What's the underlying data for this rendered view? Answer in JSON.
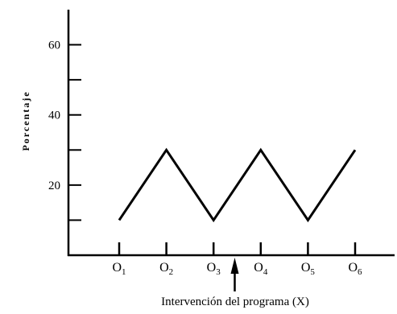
{
  "chart_data": {
    "type": "line",
    "title": "",
    "xlabel": "",
    "ylabel": "Porcentaje",
    "ylim": [
      0,
      70
    ],
    "yticks": [
      10,
      20,
      30,
      40,
      50,
      60
    ],
    "ytick_labels": [
      "",
      "20",
      "",
      "40",
      "",
      "60"
    ],
    "categories": [
      {
        "base": "O",
        "sub": "1"
      },
      {
        "base": "O",
        "sub": "2"
      },
      {
        "base": "O",
        "sub": "3"
      },
      {
        "base": "O",
        "sub": "4"
      },
      {
        "base": "O",
        "sub": "5"
      },
      {
        "base": "O",
        "sub": "6"
      }
    ],
    "series": [
      {
        "values": [
          10,
          30,
          10,
          30,
          10,
          30
        ],
        "color": "#000000"
      }
    ],
    "annotations": [
      {
        "text": "Intervención del programa (X)",
        "between": [
          2,
          3
        ],
        "marker": "arrow-up"
      }
    ],
    "grid": false,
    "legend": "none"
  }
}
